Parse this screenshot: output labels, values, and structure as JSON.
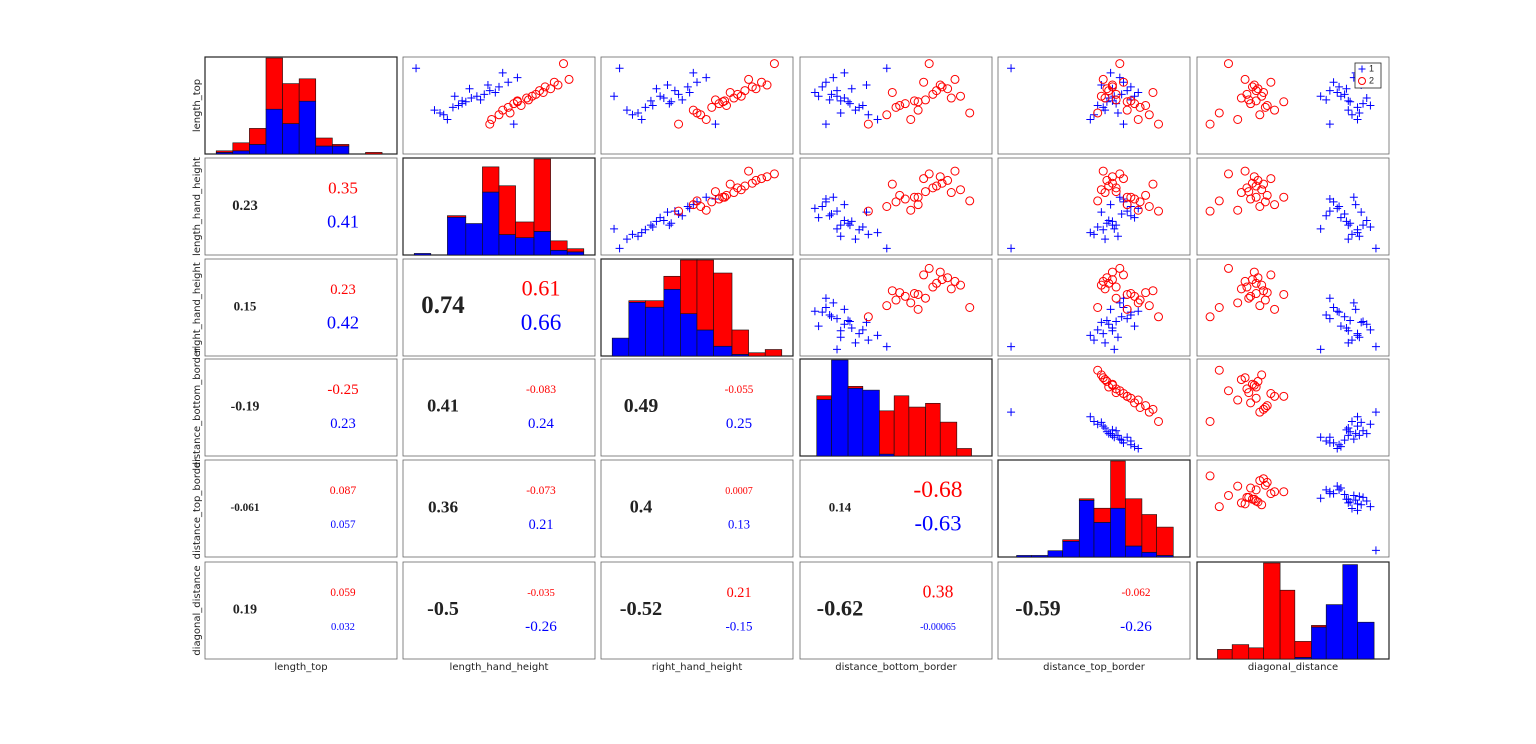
{
  "chart_data": {
    "type": "scatter_matrix",
    "variables": [
      "length_top",
      "length_hand_height",
      "right_hand_height",
      "distance_bottom_border",
      "distance_top_border",
      "diagonal_distance"
    ],
    "legend": "upper right",
    "groups": [
      {
        "name": "1",
        "color": "#0000ff",
        "marker": "+",
        "observations": [
          [
            0.55,
            0.3,
            0.25,
            0.2,
            0.6,
            0.8
          ],
          [
            0.62,
            0.42,
            0.4,
            0.15,
            0.65,
            0.78
          ],
          [
            0.48,
            0.25,
            0.22,
            0.3,
            0.55,
            0.85
          ],
          [
            0.7,
            0.5,
            0.45,
            0.1,
            0.7,
            0.75
          ],
          [
            0.4,
            0.2,
            0.15,
            0.35,
            0.5,
            0.82
          ],
          [
            0.58,
            0.35,
            0.32,
            0.22,
            0.58,
            0.9
          ],
          [
            0.75,
            0.55,
            0.5,
            0.12,
            0.66,
            0.72
          ],
          [
            0.52,
            0.3,
            0.35,
            0.25,
            0.62,
            0.88
          ],
          [
            0.45,
            0.15,
            0.12,
            0.28,
            0.56,
            0.8
          ],
          [
            0.66,
            0.45,
            0.38,
            0.18,
            0.68,
            0.7
          ],
          [
            0.35,
            0.22,
            0.2,
            0.4,
            0.48,
            0.85
          ],
          [
            0.6,
            0.38,
            0.3,
            0.08,
            0.72,
            0.76
          ],
          [
            0.8,
            0.6,
            0.55,
            0.16,
            0.64,
            0.83
          ],
          [
            0.5,
            0.28,
            0.26,
            0.32,
            0.52,
            0.92
          ],
          [
            0.56,
            0.4,
            0.42,
            0.14,
            0.7,
            0.68
          ],
          [
            0.68,
            0.34,
            0.28,
            0.26,
            0.6,
            0.79
          ],
          [
            0.42,
            0.18,
            0.18,
            0.2,
            0.63,
            0.86
          ],
          [
            0.64,
            0.48,
            0.46,
            0.06,
            0.74,
            0.74
          ],
          [
            0.54,
            0.32,
            0.36,
            0.24,
            0.57,
            0.81
          ],
          [
            0.72,
            0.44,
            0.34,
            0.34,
            0.54,
            0.87
          ],
          [
            0.9,
            0.05,
            0.08,
            0.45,
            0.05,
            0.95
          ],
          [
            0.3,
            0.58,
            0.6,
            0.12,
            0.66,
            0.7
          ],
          [
            0.6,
            0.26,
            0.05,
            0.18,
            0.61,
            0.65
          ],
          [
            0.85,
            0.52,
            0.48,
            0.22,
            0.59,
            0.84
          ]
        ]
      },
      {
        "name": "2",
        "color": "#ff0000",
        "marker": "o",
        "observations": [
          [
            0.55,
            0.6,
            0.65,
            0.6,
            0.7,
            0.3
          ],
          [
            0.62,
            0.7,
            0.72,
            0.7,
            0.62,
            0.25
          ],
          [
            0.48,
            0.55,
            0.58,
            0.5,
            0.75,
            0.35
          ],
          [
            0.7,
            0.75,
            0.8,
            0.75,
            0.6,
            0.28
          ],
          [
            0.4,
            0.5,
            0.52,
            0.45,
            0.8,
            0.32
          ],
          [
            0.58,
            0.65,
            0.7,
            0.8,
            0.56,
            0.22
          ],
          [
            0.75,
            0.8,
            0.85,
            0.65,
            0.66,
            0.38
          ],
          [
            0.52,
            0.58,
            0.62,
            0.55,
            0.72,
            0.27
          ],
          [
            0.45,
            0.52,
            0.48,
            0.62,
            0.68,
            0.4
          ],
          [
            0.66,
            0.72,
            0.76,
            0.72,
            0.58,
            0.3
          ],
          [
            0.35,
            0.46,
            0.55,
            0.58,
            0.74,
            0.2
          ],
          [
            0.6,
            0.68,
            0.74,
            0.85,
            0.54,
            0.33
          ],
          [
            0.95,
            0.85,
            0.92,
            0.68,
            0.64,
            0.15
          ],
          [
            0.5,
            0.62,
            0.66,
            0.52,
            0.78,
            0.36
          ],
          [
            0.56,
            0.66,
            0.6,
            0.66,
            0.62,
            0.26
          ],
          [
            0.68,
            0.78,
            0.82,
            0.78,
            0.57,
            0.31
          ],
          [
            0.42,
            0.56,
            0.5,
            0.9,
            0.52,
            0.1
          ],
          [
            0.64,
            0.74,
            0.68,
            0.48,
            0.82,
            0.34
          ],
          [
            0.54,
            0.6,
            0.64,
            0.62,
            0.68,
            0.45
          ],
          [
            0.72,
            0.82,
            0.88,
            0.74,
            0.6,
            0.29
          ],
          [
            0.3,
            0.45,
            0.4,
            0.35,
            0.85,
            0.05
          ],
          [
            0.78,
            0.88,
            0.78,
            0.82,
            0.55,
            0.24
          ]
        ]
      }
    ],
    "histograms": [
      {
        "bins": [
          0.04,
          0.13,
          0.22,
          0.31,
          0.4,
          0.49,
          0.58,
          0.67,
          0.76,
          0.85,
          0.94
        ],
        "counts": [
          [
            1,
            2,
            6,
            28,
            19,
            33,
            5,
            5,
            0,
            0
          ],
          [
            1,
            5,
            10,
            32,
            25,
            14,
            5,
            1,
            0,
            1
          ]
        ]
      },
      {
        "bins": [
          0.04,
          0.13,
          0.22,
          0.32,
          0.41,
          0.5,
          0.59,
          0.69,
          0.78,
          0.87,
          0.96
        ],
        "counts": [
          [
            1,
            0,
            24,
            20,
            40,
            13,
            11,
            15,
            3,
            2
          ],
          [
            0,
            0,
            1,
            0,
            16,
            31,
            10,
            46,
            6,
            2
          ]
        ]
      },
      {
        "bins": [
          0.04,
          0.13,
          0.22,
          0.32,
          0.41,
          0.5,
          0.59,
          0.69,
          0.78,
          0.87,
          0.96
        ],
        "counts": [
          [
            11,
            33,
            30,
            41,
            26,
            16,
            6,
            1,
            0,
            0
          ],
          [
            0,
            1,
            4,
            8,
            33,
            43,
            45,
            15,
            2,
            4
          ]
        ]
      },
      {
        "bins": [
          0.07,
          0.15,
          0.24,
          0.32,
          0.41,
          0.49,
          0.57,
          0.66,
          0.74,
          0.83,
          0.91
        ],
        "counts": [
          [
            30,
            51,
            36,
            35,
            1,
            0,
            0,
            0,
            0,
            0
          ],
          [
            2,
            0,
            1,
            0,
            23,
            32,
            26,
            28,
            18,
            4
          ]
        ]
      },
      {
        "bins": [
          0.08,
          0.16,
          0.25,
          0.33,
          0.42,
          0.5,
          0.59,
          0.67,
          0.76,
          0.84,
          0.93
        ],
        "counts": [
          [
            1,
            1,
            4,
            10,
            36,
            22,
            31,
            7,
            3,
            1
          ],
          [
            0,
            0,
            0,
            1,
            1,
            9,
            30,
            30,
            24,
            18
          ]
        ]
      },
      {
        "bins": [
          0.09,
          0.17,
          0.26,
          0.34,
          0.43,
          0.51,
          0.6,
          0.68,
          0.77,
          0.85,
          0.94
        ],
        "counts": [
          [
            0,
            0,
            0,
            0,
            0,
            1,
            20,
            34,
            59,
            23
          ],
          [
            6,
            9,
            7,
            60,
            43,
            10,
            1,
            0,
            0,
            0
          ]
        ]
      }
    ],
    "correlations": [
      {
        "row": 1,
        "col": 0,
        "overall": 0.23,
        "groups": [
          0.41,
          0.35
        ]
      },
      {
        "row": 2,
        "col": 0,
        "overall": 0.15,
        "groups": [
          0.42,
          0.23
        ]
      },
      {
        "row": 2,
        "col": 1,
        "overall": 0.74,
        "groups": [
          0.66,
          0.61
        ]
      },
      {
        "row": 3,
        "col": 0,
        "overall": -0.19,
        "groups": [
          0.23,
          -0.25
        ]
      },
      {
        "row": 3,
        "col": 1,
        "overall": 0.41,
        "groups": [
          0.24,
          -0.083
        ]
      },
      {
        "row": 3,
        "col": 2,
        "overall": 0.49,
        "groups": [
          0.25,
          -0.055
        ]
      },
      {
        "row": 4,
        "col": 0,
        "overall": -0.061,
        "groups": [
          0.057,
          0.087
        ]
      },
      {
        "row": 4,
        "col": 1,
        "overall": 0.36,
        "groups": [
          0.21,
          -0.073
        ]
      },
      {
        "row": 4,
        "col": 2,
        "overall": 0.4,
        "groups": [
          0.13,
          0.0007
        ]
      },
      {
        "row": 4,
        "col": 3,
        "overall": 0.14,
        "groups": [
          -0.63,
          -0.68
        ]
      },
      {
        "row": 5,
        "col": 0,
        "overall": 0.19,
        "groups": [
          0.032,
          0.059
        ]
      },
      {
        "row": 5,
        "col": 1,
        "overall": -0.5,
        "groups": [
          -0.26,
          -0.035
        ]
      },
      {
        "row": 5,
        "col": 2,
        "overall": -0.52,
        "groups": [
          -0.15,
          0.21
        ]
      },
      {
        "row": 5,
        "col": 3,
        "overall": -0.62,
        "groups": [
          -0.00065,
          0.38
        ]
      },
      {
        "row": 5,
        "col": 4,
        "overall": -0.59,
        "groups": [
          -0.26,
          -0.062
        ]
      }
    ]
  }
}
